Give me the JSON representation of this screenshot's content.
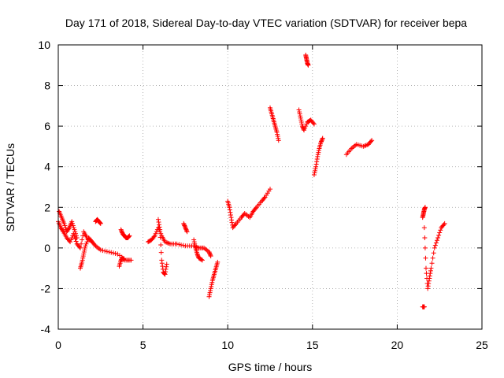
{
  "chart_data": {
    "type": "scatter",
    "title": "Day 171 of 2018, Sidereal Day-to-day VTEC variation (SDTVAR) for receiver bepa",
    "xlabel": "GPS time / hours",
    "ylabel": "SDTVAR / TECUs",
    "xlim": [
      0,
      25
    ],
    "ylim": [
      -4,
      10
    ],
    "xticks": [
      "0",
      "5",
      "10",
      "15",
      "20",
      "25"
    ],
    "yticks": [
      "-4",
      "-2",
      "0",
      "2",
      "4",
      "6",
      "8",
      "10"
    ],
    "grid": true,
    "marker": "+",
    "color": "#ff0000",
    "segments": [
      {
        "name": "seg-1",
        "x": [
          0.0,
          0.15,
          0.3,
          0.5,
          0.7,
          0.9,
          1.1,
          1.3,
          1.5,
          1.7,
          2.0,
          2.2,
          2.5,
          3.0,
          3.5,
          4.0,
          4.3
        ],
        "y": [
          1.3,
          1.0,
          0.8,
          0.5,
          0.3,
          0.7,
          0.2,
          0.0,
          0.8,
          0.5,
          0.3,
          0.1,
          -0.1,
          -0.2,
          -0.3,
          -0.6,
          -0.6
        ]
      },
      {
        "name": "seg-2",
        "x": [
          0.05,
          0.2,
          0.35,
          0.5,
          0.65,
          0.8,
          0.95,
          1.1
        ],
        "y": [
          1.8,
          1.5,
          1.2,
          0.8,
          1.0,
          1.3,
          0.9,
          0.5
        ]
      },
      {
        "name": "seg-3",
        "x": [
          1.3,
          1.4,
          1.5,
          1.6,
          1.8,
          2.0
        ],
        "y": [
          -1.0,
          -0.7,
          -0.3,
          0.1,
          0.5,
          0.3
        ]
      },
      {
        "name": "seg-4",
        "x": [
          2.2,
          2.3,
          2.4,
          2.5
        ],
        "y": [
          1.3,
          1.4,
          1.3,
          1.2
        ]
      },
      {
        "name": "seg-5",
        "x": [
          3.7,
          3.8,
          3.9,
          4.0,
          4.1,
          4.2
        ],
        "y": [
          0.9,
          0.7,
          0.6,
          0.5,
          0.5,
          0.6
        ]
      },
      {
        "name": "seg-6",
        "x": [
          3.6,
          3.7,
          3.8,
          3.9
        ],
        "y": [
          -0.9,
          -0.6,
          -0.5,
          -0.6
        ]
      },
      {
        "name": "seg-7",
        "x": [
          5.3,
          5.5,
          5.7,
          5.9,
          6.1,
          6.3,
          6.6,
          7.0,
          7.5,
          8.0,
          8.3,
          8.6,
          8.9,
          9.0
        ],
        "y": [
          0.3,
          0.4,
          0.6,
          1.0,
          0.6,
          0.3,
          0.2,
          0.2,
          0.1,
          0.1,
          0.0,
          0.0,
          -0.2,
          -0.4
        ]
      },
      {
        "name": "seg-8",
        "x": [
          5.9,
          6.0,
          6.1,
          6.2,
          6.3,
          6.4
        ],
        "y": [
          1.4,
          0.9,
          -0.6,
          -1.2,
          -1.3,
          -0.8
        ]
      },
      {
        "name": "seg-9",
        "x": [
          7.4,
          7.5,
          7.6
        ],
        "y": [
          1.2,
          1.0,
          0.8
        ]
      },
      {
        "name": "seg-10",
        "x": [
          8.0,
          8.1,
          8.2,
          8.3,
          8.5
        ],
        "y": [
          0.4,
          0.0,
          -0.3,
          -0.5,
          -0.6
        ]
      },
      {
        "name": "seg-11",
        "x": [
          8.9,
          9.0,
          9.1,
          9.2,
          9.3,
          9.4
        ],
        "y": [
          -2.4,
          -2.0,
          -1.6,
          -1.3,
          -1.0,
          -0.7
        ]
      },
      {
        "name": "seg-12",
        "x": [
          10.0,
          10.1,
          10.2,
          10.3,
          10.5,
          10.8,
          11.0,
          11.3,
          11.5,
          11.7,
          12.0,
          12.2,
          12.5
        ],
        "y": [
          2.3,
          2.0,
          1.5,
          1.0,
          1.2,
          1.5,
          1.7,
          1.5,
          1.8,
          2.0,
          2.3,
          2.5,
          2.9
        ]
      },
      {
        "name": "seg-13",
        "x": [
          12.5,
          12.6,
          12.7,
          12.8,
          12.9,
          13.0
        ],
        "y": [
          6.9,
          6.6,
          6.3,
          6.0,
          5.7,
          5.3
        ]
      },
      {
        "name": "seg-14",
        "x": [
          14.2,
          14.3,
          14.4,
          14.5,
          14.7,
          14.9,
          15.1
        ],
        "y": [
          6.8,
          6.4,
          6.0,
          5.8,
          6.2,
          6.3,
          6.1
        ]
      },
      {
        "name": "seg-15",
        "x": [
          14.6,
          14.65,
          14.7,
          14.75
        ],
        "y": [
          9.5,
          9.3,
          9.1,
          9.0
        ]
      },
      {
        "name": "seg-16",
        "x": [
          15.1,
          15.2,
          15.3,
          15.4,
          15.5,
          15.6
        ],
        "y": [
          3.6,
          4.0,
          4.5,
          4.9,
          5.2,
          5.4
        ]
      },
      {
        "name": "seg-17",
        "x": [
          17.0,
          17.3,
          17.6,
          18.0,
          18.3,
          18.5
        ],
        "y": [
          4.6,
          4.9,
          5.1,
          5.0,
          5.1,
          5.3
        ]
      },
      {
        "name": "seg-18",
        "x": [
          21.5,
          21.55,
          21.6,
          21.65
        ],
        "y": [
          1.5,
          1.7,
          1.9,
          2.0
        ]
      },
      {
        "name": "seg-19",
        "x": [
          21.6,
          21.7,
          21.8,
          21.9,
          22.0,
          22.2,
          22.4,
          22.6,
          22.8
        ],
        "y": [
          1.0,
          -1.0,
          -2.0,
          -1.5,
          -1.0,
          0.0,
          0.5,
          1.0,
          1.2
        ]
      },
      {
        "name": "seg-20",
        "x": [
          21.5,
          21.55,
          21.6
        ],
        "y": [
          -2.9,
          -2.9,
          -2.9
        ]
      }
    ]
  }
}
